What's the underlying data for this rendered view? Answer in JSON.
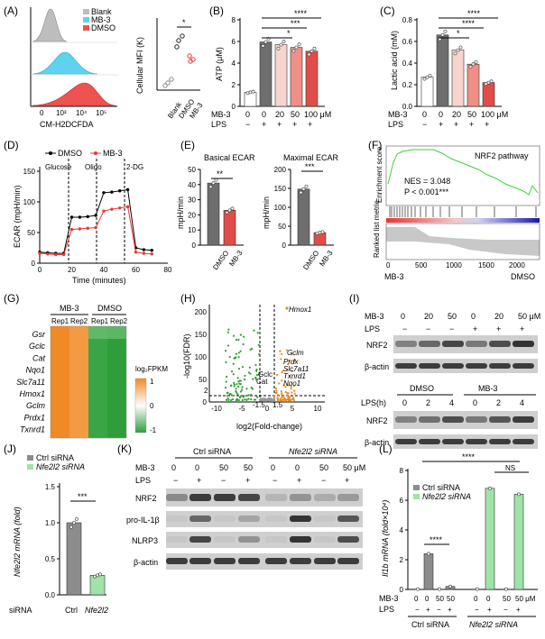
{
  "panel_labels": [
    "(A)",
    "(B)",
    "(C)",
    "(D)",
    "(E)",
    "(F)",
    "(G)",
    "(H)",
    "(I)",
    "(J)",
    "(K)",
    "(L)"
  ],
  "colors": {
    "blank": "#bdbdbd",
    "mb3": "#5fd3ee",
    "dmso": "#ef5350",
    "bar_dark": "#6e6e6e",
    "bar_light": "#f8d4cf",
    "bar_mid": "#ef8f86",
    "bar_red": "#e04d48",
    "gsea_line": "#39d639",
    "heat_high": "#f08a24",
    "heat_low": "#2f9e3a",
    "up": "#e8891d",
    "down": "#2ca02c",
    "ctrl_bar": "#8c8c8c",
    "nfe_bar": "#9fe3a8"
  },
  "A": {
    "legend": [
      "Blank",
      "MB-3",
      "DMSO"
    ],
    "xlabel": "CM-H2DCFDA",
    "xticks": [
      "0",
      "10³",
      "10⁴",
      "10⁵"
    ],
    "scatter_ylabel": "Cellular MFI (K)",
    "scatter_cats": [
      "Blank",
      "DMSO",
      "MB-3"
    ],
    "sig": "*"
  },
  "B": {
    "ylabel": "ATP (μM)",
    "yticks": [
      "0",
      "2",
      "4",
      "6",
      "8"
    ],
    "sigs": [
      "*",
      "***",
      "****"
    ]
  },
  "C": {
    "ylabel": "Lactic acid (mM)",
    "yticks": [
      "0.0",
      "0.2",
      "0.4",
      "0.6",
      "0.8"
    ],
    "sigs": [
      "*",
      "****",
      "****"
    ]
  },
  "treat_rows": {
    "mb3": "MB-3",
    "lps": "LPS",
    "mb3_vals": [
      "0",
      "0",
      "20",
      "50",
      "100 μM"
    ],
    "lps_vals": [
      "−",
      "+",
      "+",
      "+",
      "+"
    ]
  },
  "D": {
    "legend": [
      "DMSO",
      "MB-3"
    ],
    "ylabel": "ECAR (mpH/min)",
    "xlabel": "Time (minutes)",
    "annotations": [
      "Glucose",
      "Oligo",
      "2-DG"
    ],
    "yticks": [
      "0",
      "50",
      "100",
      "150"
    ],
    "xticks": [
      "0",
      "20",
      "40",
      "60",
      "80"
    ]
  },
  "E": {
    "basal_title": "Basical ECAR",
    "maximal_title": "Maximal ECAR",
    "ylabel": "mpH/min",
    "basal_yticks": [
      "0",
      "10",
      "20",
      "30",
      "40",
      "50"
    ],
    "max_yticks": [
      "0",
      "50",
      "100",
      "150",
      "200"
    ],
    "cats": [
      "DMSO",
      "MB-3"
    ],
    "basal_sig": "**",
    "max_sig": "***"
  },
  "F": {
    "pathway": "NRF2 pathway",
    "nes": "NES = 3.048",
    "pval": "P < 0.001***",
    "ylabel_top": "Enrichment score",
    "ylabel_bottom": "Ranked list metric",
    "xticks": [
      "0",
      "500",
      "1000",
      "1500",
      "2000"
    ],
    "left": "MB-3",
    "right": "DMSO"
  },
  "G": {
    "groups": [
      "MB-3",
      "DMSO"
    ],
    "reps": [
      "Rep1",
      "Rep2",
      "Rep1",
      "Rep2"
    ],
    "genes": [
      "Gsr",
      "Gclc",
      "Cat",
      "Nqo1",
      "Slc7a11",
      "Hmox1",
      "Gclm",
      "Prdx1",
      "Txnrd1"
    ],
    "legend_title": "log₂FPKM",
    "legend_ticks": [
      "1",
      "0",
      "-1"
    ]
  },
  "H": {
    "ylabel": "-log10(FDR)",
    "xlabel": "log2(Fold-change)",
    "xticks": [
      "-10",
      "-5",
      "0",
      "5",
      "10"
    ],
    "yticks": [
      "0",
      "50",
      "100",
      "150",
      "200"
    ],
    "genes": [
      "Hmox1",
      "Gclm",
      "Prdx",
      "Slc7a11",
      "Txnrd1",
      "Nqo1",
      "Gclc",
      "Cat"
    ],
    "guides": [
      "-1.5",
      "1.5",
      "2"
    ]
  },
  "I": {
    "mb3_label": "MB-3",
    "lps_label": "LPS",
    "lpsh_label": "LPS(h)",
    "mb3_vals": [
      "0",
      "20",
      "50",
      "0",
      "20",
      "50 μM"
    ],
    "lps_vals": [
      "−",
      "−",
      "−",
      "+",
      "+",
      "+"
    ],
    "groups": [
      "DMSO",
      "MB-3"
    ],
    "time_vals": [
      "0",
      "2",
      "4",
      "0",
      "2",
      "4"
    ],
    "bands": [
      "NRF2",
      "β-actin",
      "NRF2",
      "β-actin"
    ]
  },
  "J": {
    "legend": [
      "Ctrl siRNA",
      "Nfe2l2 siRNA"
    ],
    "ylabel": "Nfe2l2 mRNA (fold)",
    "yticks": [
      "0.0",
      "0.5",
      "1.0",
      "1.5"
    ],
    "row_label": "siRNA",
    "cats": [
      "Ctrl",
      "Nfe2l2"
    ],
    "sig": "***"
  },
  "K": {
    "headers": [
      "Ctrl siRNA",
      "Nfe2l2 siRNA"
    ],
    "mb3_label": "MB-3",
    "lps_label": "LPS",
    "mb3_vals": [
      "0",
      "0",
      "50",
      "50",
      "0",
      "0",
      "50",
      "50 μM"
    ],
    "lps_vals": [
      "−",
      "+",
      "−",
      "+",
      "−",
      "+",
      "−",
      "+"
    ],
    "bands": [
      "NRF2",
      "pro-IL-1β",
      "NLRP3",
      "β-actin"
    ]
  },
  "L": {
    "legend": [
      "Ctrl siRNA",
      "Nfe2l2 siRNA"
    ],
    "ylabel": "Il1b mRNA (fold×10⁴)",
    "yticks": [
      "0",
      "2",
      "4",
      "6",
      "8"
    ],
    "mb3_vals": [
      "0",
      "0",
      "50",
      "50",
      "0",
      "0",
      "50",
      "50 μM"
    ],
    "lps_vals": [
      "−",
      "+",
      "−",
      "+",
      "−",
      "+",
      "−",
      "+"
    ],
    "groups": [
      "Ctrl siRNA",
      "Nfe2l2 siRNA"
    ],
    "sigs": [
      "****",
      "****",
      "NS"
    ]
  },
  "chart_data": [
    {
      "type": "bar",
      "title": "",
      "ylabel": "ATP (μM)",
      "ylim": [
        0,
        8
      ],
      "categories": [
        "0/−",
        "0/+",
        "20/+",
        "50/+",
        "100/+"
      ],
      "values": [
        1.3,
        5.95,
        5.7,
        5.45,
        5.1
      ]
    },
    {
      "type": "bar",
      "title": "",
      "ylabel": "Lactic acid (mM)",
      "ylim": [
        0,
        0.8
      ],
      "categories": [
        "0/−",
        "0/+",
        "20/+",
        "50/+",
        "100/+"
      ],
      "values": [
        0.27,
        0.66,
        0.52,
        0.39,
        0.22
      ]
    },
    {
      "type": "line",
      "ylabel": "ECAR (mpH/min)",
      "xlabel": "Time (minutes)",
      "ylim": [
        0,
        150
      ],
      "xlim": [
        0,
        80
      ],
      "x": [
        0,
        5,
        10,
        15,
        20,
        25,
        30,
        35,
        40,
        45,
        50,
        55,
        60,
        65,
        70
      ],
      "series": [
        {
          "name": "DMSO",
          "values": [
            18,
            17,
            16,
            16,
            75,
            75,
            76,
            78,
            115,
            116,
            118,
            120,
            25,
            22,
            21
          ]
        },
        {
          "name": "MB-3",
          "values": [
            16,
            15,
            14,
            14,
            55,
            56,
            57,
            58,
            85,
            88,
            90,
            92,
            18,
            16,
            15
          ]
        }
      ]
    },
    {
      "type": "bar",
      "title": "Basical ECAR",
      "ylabel": "mpH/min",
      "ylim": [
        0,
        50
      ],
      "categories": [
        "DMSO",
        "MB-3"
      ],
      "values": [
        41,
        23
      ]
    },
    {
      "type": "bar",
      "title": "Maximal ECAR",
      "ylabel": "mpH/min",
      "ylim": [
        0,
        200
      ],
      "categories": [
        "DMSO",
        "MB-3"
      ],
      "values": [
        148,
        33
      ]
    },
    {
      "type": "bar",
      "ylabel": "Nfe2l2 mRNA (fold)",
      "ylim": [
        0,
        1.5
      ],
      "categories": [
        "Ctrl",
        "Nfe2l2"
      ],
      "values": [
        1.0,
        0.27
      ]
    },
    {
      "type": "bar",
      "ylabel": "Il1b mRNA (fold×10⁴)",
      "ylim": [
        0,
        8
      ],
      "categories": [
        "Ctrl 0/−",
        "Ctrl 0/+",
        "Ctrl 50/−",
        "Ctrl 50/+",
        "Nfe2l2 0/−",
        "Nfe2l2 0/+",
        "Nfe2l2 50/−",
        "Nfe2l2 50/+"
      ],
      "values": [
        0.02,
        2.4,
        0.02,
        0.2,
        0.02,
        6.8,
        0.02,
        6.4
      ]
    }
  ]
}
